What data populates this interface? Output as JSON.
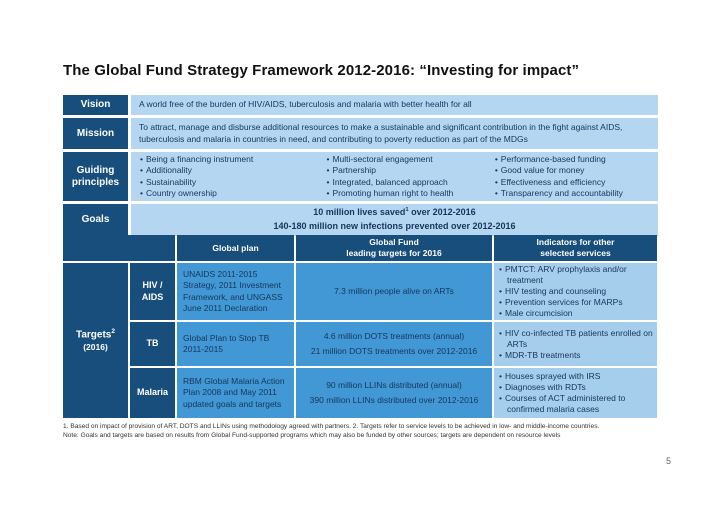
{
  "slide": {
    "title": "The Global Fund Strategy Framework 2012-2016: “Investing for impact”",
    "page_number": "5"
  },
  "vision": {
    "label": "Vision",
    "text": "A world free of the burden of HIV/AIDS, tuberculosis and malaria with better health for all"
  },
  "mission": {
    "label": "Mission",
    "text": "To attract, manage and disburse additional resources to make a sustainable and significant contribution in the fight against AIDS, tuberculosis and malaria in countries in need, and contributing to poverty reduction as part of the MDGs"
  },
  "guiding_principles": {
    "label": "Guiding principles",
    "columns": [
      [
        "Being a financing instrument",
        "Additionality",
        "Sustainability",
        "Country ownership"
      ],
      [
        "Multi-sectoral engagement",
        "Partnership",
        "Integrated, balanced approach",
        "Promoting human right to health"
      ],
      [
        "Performance-based funding",
        "Good value for money",
        "Effectiveness and efficiency",
        "Transparency and accountability"
      ]
    ]
  },
  "goals": {
    "label": "Goals",
    "line1_pre": "10 million lives saved",
    "line1_sup": "1",
    "line1_post": " over 2012-2016",
    "line2": "140-180 million new infections prevented over 2012-2016"
  },
  "targets_table": {
    "row_label": {
      "text": "Targets",
      "sup": "2",
      "year": "(2016)"
    },
    "headers": {
      "plan": "Global plan",
      "targets_line1": "Global Fund",
      "targets_line2": "leading targets for 2016",
      "indicators_line1": "Indicators for other",
      "indicators_line2": "selected services"
    },
    "rows": [
      {
        "disease": "HIV / AIDS",
        "plan": "UNAIDS 2011-2015 Strategy, 2011 Investment Framework, and UNGASS June 2011 Declaration",
        "targets": [
          "7.3 million people alive on ARTs"
        ],
        "indicators": [
          "PMTCT: ARV prophylaxis and/or treatment",
          "HIV testing and counseling",
          "Prevention services for MARPs",
          "Male circumcision"
        ]
      },
      {
        "disease": "TB",
        "plan": "Global Plan to Stop TB 2011-2015",
        "targets": [
          "4.6 million DOTS treatments (annual)",
          "21 million DOTS treatments over 2012-2016"
        ],
        "indicators": [
          "HIV co-infected TB patients enrolled on ARTs",
          "MDR-TB treatments"
        ]
      },
      {
        "disease": "Malaria",
        "plan": "RBM Global Malaria Action Plan 2008 and May 2011 updated goals and targets",
        "targets": [
          "90 million LLINs distributed (annual)",
          "390 million LLINs distributed over 2012-2016"
        ],
        "indicators": [
          "Houses sprayed with IRS",
          "Diagnoses with RDTs",
          "Courses of ACT administered to confirmed malaria cases"
        ]
      }
    ]
  },
  "footnotes": {
    "line1": "1. Based on impact of provision of ART, DOTS and LLINs using methodology agreed with partners.  2. Targets refer to service levels to be achieved in low- and middle-income countries.",
    "line2": "Note: Goals and targets are based on results from Global Fund-supported programs which may also be funded by other sources; targets are dependent on resource levels"
  },
  "colors": {
    "dark_navy": "#174E7C",
    "medium_blue": "#4198D4",
    "light_blue": "#B4D6F0",
    "indicator_blue": "#A5CDEC",
    "text_navy": "#17365D"
  }
}
